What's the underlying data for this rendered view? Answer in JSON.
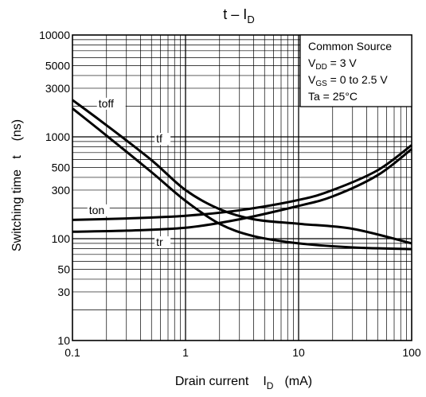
{
  "chart_data": {
    "type": "line",
    "title": "t – I",
    "title_sub": "D",
    "xlabel": "Drain current",
    "xlabel_symbol": "I",
    "xlabel_sub": "D",
    "xlabel_unit": "(mA)",
    "ylabel": "Switching time   t    (ns)",
    "x_scale": "log",
    "y_scale": "log",
    "xlim": [
      0.1,
      100
    ],
    "ylim": [
      10,
      10000
    ],
    "grid": true,
    "x_ticks": [
      {
        "value": 0.1,
        "label": "0.1"
      },
      {
        "value": 1,
        "label": "1"
      },
      {
        "value": 10,
        "label": "10"
      },
      {
        "value": 100,
        "label": "100"
      }
    ],
    "y_ticks": [
      {
        "value": 10000,
        "label": "10000"
      },
      {
        "value": 5000,
        "label": "5000"
      },
      {
        "value": 3000,
        "label": "3000"
      },
      {
        "value": 1000,
        "label": "1000"
      },
      {
        "value": 500,
        "label": "500"
      },
      {
        "value": 300,
        "label": "300"
      },
      {
        "value": 100,
        "label": "100"
      },
      {
        "value": 50,
        "label": "50"
      },
      {
        "value": 30,
        "label": "30"
      },
      {
        "value": 10,
        "label": "10"
      }
    ],
    "conditions": [
      {
        "sym": "",
        "sub": "",
        "text": "Common Source"
      },
      {
        "sym": "V",
        "sub": "DD",
        "text": " = 3 V"
      },
      {
        "sym": "V",
        "sub": "GS",
        "text": " = 0 to 2.5 V"
      },
      {
        "sym": "Ta",
        "sub": "",
        "text": " = 25°C"
      }
    ],
    "series": [
      {
        "name": "toff",
        "label_at": [
          0.17,
          1950
        ],
        "points": [
          [
            0.1,
            2300
          ],
          [
            0.2,
            1300
          ],
          [
            0.5,
            590
          ],
          [
            1,
            300
          ],
          [
            2,
            195
          ],
          [
            4,
            155
          ],
          [
            10,
            140
          ],
          [
            30,
            125
          ],
          [
            100,
            90
          ]
        ]
      },
      {
        "name": "tf",
        "label_at": [
          0.55,
          880
        ],
        "points": [
          [
            0.1,
            1900
          ],
          [
            0.2,
            1030
          ],
          [
            0.5,
            450
          ],
          [
            1,
            235
          ],
          [
            2,
            140
          ],
          [
            4,
            106
          ],
          [
            10,
            90
          ],
          [
            30,
            82
          ],
          [
            100,
            79
          ]
        ]
      },
      {
        "name": "ton",
        "label_at": [
          0.14,
          175
        ],
        "points": [
          [
            0.1,
            153
          ],
          [
            0.3,
            158
          ],
          [
            1,
            168
          ],
          [
            3,
            190
          ],
          [
            10,
            240
          ],
          [
            20,
            300
          ],
          [
            50,
            470
          ],
          [
            100,
            830
          ]
        ]
      },
      {
        "name": "tr",
        "label_at": [
          0.55,
          85
        ],
        "points": [
          [
            0.1,
            117
          ],
          [
            0.3,
            120
          ],
          [
            1,
            128
          ],
          [
            3,
            155
          ],
          [
            10,
            210
          ],
          [
            20,
            260
          ],
          [
            50,
            420
          ],
          [
            100,
            760
          ]
        ]
      }
    ]
  }
}
